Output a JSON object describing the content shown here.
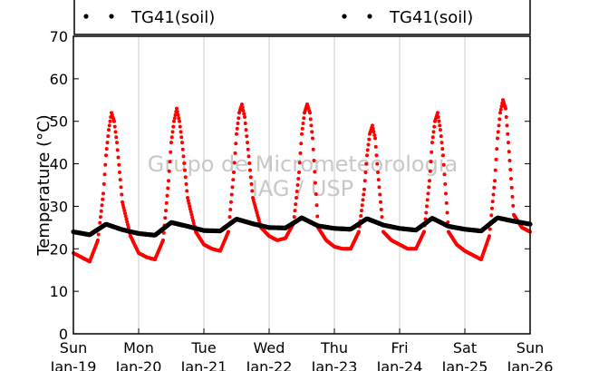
{
  "chart_data": {
    "type": "scatter",
    "ylabel": "Temperature (°C)",
    "ylim": [
      0,
      70
    ],
    "yticks": [
      0,
      10,
      20,
      30,
      40,
      50,
      60,
      70
    ],
    "xlim": [
      "Jan-19 00:00",
      "Jan-26 00:00"
    ],
    "xticks": [
      {
        "day": "Sun",
        "date": "Jan-19"
      },
      {
        "day": "Mon",
        "date": "Jan-20"
      },
      {
        "day": "Tue",
        "date": "Jan-21"
      },
      {
        "day": "Wed",
        "date": "Jan-22"
      },
      {
        "day": "Thu",
        "date": "Jan-23"
      },
      {
        "day": "Fri",
        "date": "Jan-24"
      },
      {
        "day": "Sat",
        "date": "Jan-25"
      },
      {
        "day": "Sun",
        "date": "Jan-26"
      }
    ],
    "grid": "vertical",
    "legend": {
      "placement": "top",
      "entries": [
        {
          "label": "TG41(soil)",
          "color": "#000000"
        },
        {
          "label": "TG41(soil)",
          "color": "#000000"
        }
      ]
    },
    "watermark": [
      "Grupo de Micrometeorologia",
      "IAG / USP"
    ],
    "series": [
      {
        "color": "#ff0000",
        "x_unit": "hours since Jan-19 00:00",
        "x": [
          0,
          3,
          6,
          9,
          11,
          12,
          13,
          14,
          15,
          16,
          18,
          21,
          24,
          27,
          30,
          33,
          35,
          36,
          37,
          38,
          39,
          40,
          42,
          45,
          48,
          51,
          54,
          57,
          59,
          60,
          61,
          62,
          63,
          64,
          66,
          69,
          72,
          75,
          78,
          81,
          83,
          84,
          85,
          86,
          87,
          88,
          90,
          93,
          96,
          99,
          102,
          105,
          107,
          108,
          109,
          110,
          111,
          112,
          114,
          117,
          120,
          123,
          126,
          129,
          131,
          132,
          133,
          134,
          135,
          136,
          138,
          141,
          144,
          147,
          150,
          153,
          155,
          156,
          157,
          158,
          159,
          160,
          162,
          165,
          168
        ],
        "y": [
          19,
          18,
          17,
          22,
          33,
          42,
          48,
          52,
          50,
          45,
          31,
          23,
          19,
          18,
          17.5,
          22,
          36,
          45,
          50,
          53,
          50,
          45,
          32,
          24,
          21,
          20,
          19.5,
          24,
          38,
          47,
          52,
          54,
          51,
          45,
          32,
          25,
          23,
          22,
          22.5,
          26,
          38,
          47,
          52,
          54,
          52,
          46,
          25,
          22,
          20.5,
          20,
          20,
          24,
          34,
          42,
          47,
          49,
          46,
          38,
          24,
          22,
          21,
          20,
          20,
          24,
          36,
          45,
          50,
          52,
          48,
          42,
          24,
          21,
          19.5,
          18.5,
          17.5,
          23,
          36,
          46,
          52,
          55,
          53,
          45,
          28,
          25,
          24
        ]
      },
      {
        "color": "#000000",
        "x_unit": "hours since Jan-19 00:00",
        "x": [
          0,
          6,
          12,
          18,
          24,
          30,
          36,
          42,
          48,
          54,
          60,
          66,
          72,
          78,
          84,
          90,
          96,
          102,
          108,
          114,
          120,
          126,
          132,
          138,
          144,
          150,
          156,
          162,
          168
        ],
        "y": [
          24,
          23.3,
          25.8,
          24.5,
          23.6,
          23.2,
          26.2,
          25.3,
          24.3,
          24.2,
          27,
          25.9,
          25,
          24.9,
          27.3,
          25.4,
          24.8,
          24.6,
          27.1,
          25.6,
          24.8,
          24.4,
          27.2,
          25.3,
          24.6,
          24.2,
          27.3,
          26.5,
          25.8
        ]
      }
    ]
  }
}
